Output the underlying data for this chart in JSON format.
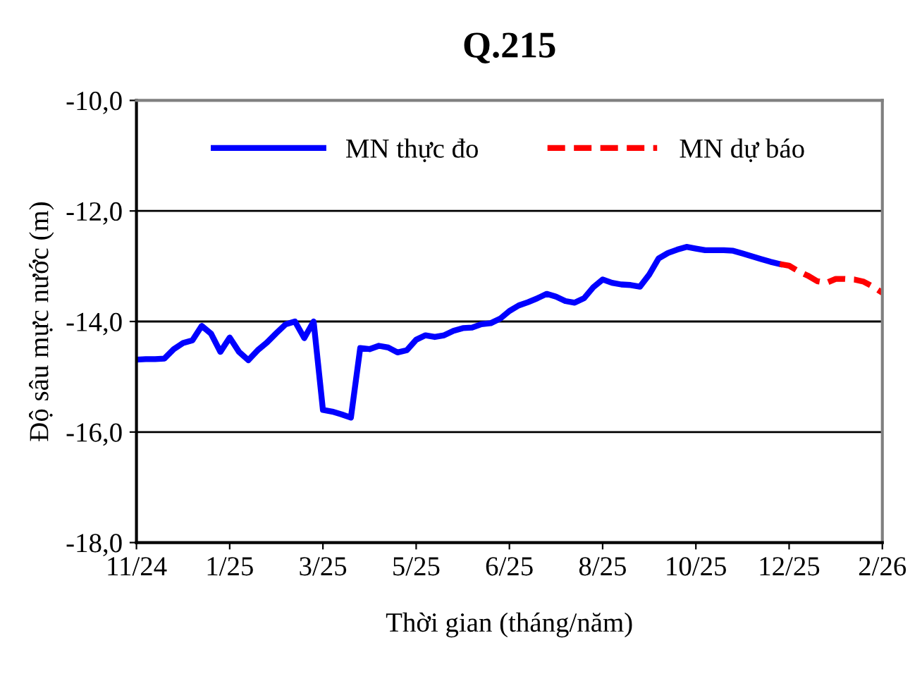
{
  "chart_data": {
    "type": "line",
    "title": "Q.215",
    "xlabel": "Thời gian (tháng/năm)",
    "ylabel": "Độ sâu mực nước (m)",
    "categories": [
      "11/24",
      null,
      null,
      null,
      null,
      null,
      null,
      null,
      null,
      null,
      "1/25",
      null,
      null,
      null,
      null,
      null,
      null,
      null,
      null,
      null,
      "3/25",
      null,
      null,
      null,
      null,
      null,
      null,
      null,
      null,
      null,
      "5/25",
      null,
      null,
      null,
      null,
      null,
      null,
      null,
      null,
      null,
      "6/25",
      null,
      null,
      null,
      null,
      null,
      null,
      null,
      null,
      null,
      "8/25",
      null,
      null,
      null,
      null,
      null,
      null,
      null,
      null,
      null,
      "10/25",
      null,
      null,
      null,
      null,
      null,
      null,
      null,
      null,
      null,
      "12/25",
      null,
      null,
      null,
      null,
      null,
      null,
      null,
      null,
      null,
      "2/26"
    ],
    "ylim": [
      -18,
      -10
    ],
    "yticks": [
      {
        "value": -18,
        "label": "-18,0"
      },
      {
        "value": -16,
        "label": "-16,0"
      },
      {
        "value": -14,
        "label": "-14,0"
      },
      {
        "value": -12,
        "label": "-12,0"
      },
      {
        "value": -10,
        "label": "-10,0"
      }
    ],
    "grid": "y",
    "legend": "top",
    "marker": "none",
    "series": [
      {
        "name": "MN thực đo",
        "color": "#0000ff",
        "line_style": "solid",
        "values": [
          -14.69,
          -14.68,
          -14.68,
          -14.67,
          -14.5,
          -14.39,
          -14.34,
          -14.08,
          -14.22,
          -14.55,
          -14.29,
          -14.55,
          -14.7,
          -14.52,
          -14.38,
          -14.21,
          -14.05,
          -14.0,
          -14.3,
          -14.0,
          -15.6,
          -15.63,
          -15.68,
          -15.74,
          -14.48,
          -14.5,
          -14.44,
          -14.47,
          -14.56,
          -14.52,
          -14.33,
          -14.25,
          -14.28,
          -14.25,
          -14.17,
          -14.12,
          -14.11,
          -14.05,
          -14.03,
          -13.95,
          -13.81,
          -13.71,
          -13.65,
          -13.58,
          -13.5,
          -13.55,
          -13.63,
          -13.66,
          -13.58,
          -13.38,
          -13.24,
          -13.3,
          -13.33,
          -13.34,
          -13.37,
          -13.15,
          -12.86,
          -12.76,
          -12.7,
          -12.65,
          -12.68,
          -12.71,
          -12.71,
          -12.71,
          -12.72,
          -12.77,
          -12.82,
          -12.87,
          -12.92,
          -12.96,
          null,
          null,
          null,
          null,
          null,
          null,
          null,
          null,
          null,
          null,
          null
        ]
      },
      {
        "name": "MN dự báo",
        "color": "#ff0000",
        "line_style": "dashed",
        "values": [
          null,
          null,
          null,
          null,
          null,
          null,
          null,
          null,
          null,
          null,
          null,
          null,
          null,
          null,
          null,
          null,
          null,
          null,
          null,
          null,
          null,
          null,
          null,
          null,
          null,
          null,
          null,
          null,
          null,
          null,
          null,
          null,
          null,
          null,
          null,
          null,
          null,
          null,
          null,
          null,
          null,
          null,
          null,
          null,
          null,
          null,
          null,
          null,
          null,
          null,
          null,
          null,
          null,
          null,
          null,
          null,
          null,
          null,
          null,
          null,
          null,
          null,
          null,
          null,
          null,
          null,
          null,
          null,
          null,
          -12.96,
          -12.99,
          -13.09,
          -13.17,
          -13.27,
          -13.3,
          -13.23,
          -13.23,
          -13.24,
          -13.28,
          -13.37,
          -13.48
        ]
      }
    ]
  }
}
